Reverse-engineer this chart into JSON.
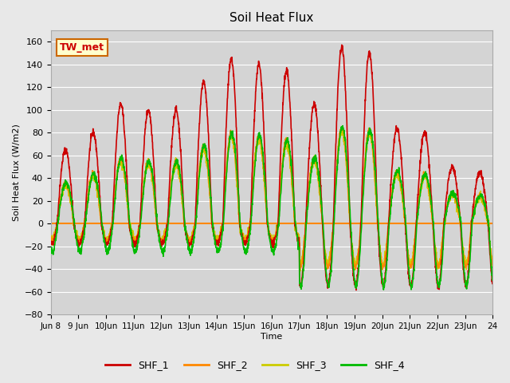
{
  "title": "Soil Heat Flux",
  "ylabel": "Soil Heat Flux (W/m2)",
  "xlabel": "Time",
  "ylim": [
    -80,
    170
  ],
  "yticks": [
    -80,
    -60,
    -40,
    -20,
    0,
    20,
    40,
    60,
    80,
    100,
    120,
    140,
    160
  ],
  "xtick_labels": [
    "Jun 8",
    "9 Jun",
    "10Jun",
    "11Jun",
    "12Jun",
    "13Jun",
    "14Jun",
    "15Jun",
    "16Jun",
    "17Jun",
    "18Jun",
    "19Jun",
    "20Jun",
    "21Jun",
    "22Jun",
    "23Jun",
    "24"
  ],
  "colors": {
    "SHF_1": "#cc0000",
    "SHF_2": "#ff8800",
    "SHF_3": "#cccc00",
    "SHF_4": "#00bb00"
  },
  "legend_label": "TW_met",
  "background_color": "#e8e8e8",
  "plot_bg_color": "#d4d4d4",
  "grid_color": "#ffffff",
  "hline_color": "#ff8800",
  "linewidth": 1.2,
  "n_days": 16
}
